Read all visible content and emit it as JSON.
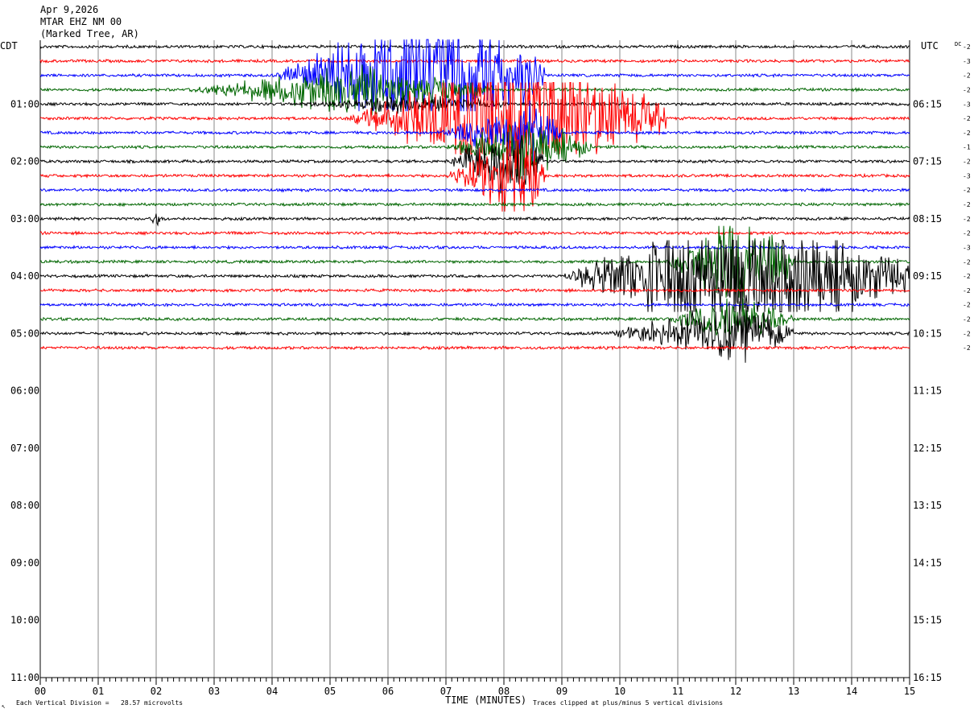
{
  "header": {
    "date": "Apr 9,2026",
    "station": "MTAR EHZ NM 00",
    "location": "(Marked Tree, AR)"
  },
  "left_tz": "CDT",
  "right_tz": "UTC",
  "dc_label": "DC",
  "footer": {
    "scale_note": "Each Vertical Division =   28.57 microvolts",
    "clip_note": "Traces clipped at plus/minus 5 vertical divisions",
    "corner_mark": "↖"
  },
  "colors": {
    "trace_cycle": [
      "#000000",
      "#ff0000",
      "#0000ff",
      "#006600"
    ],
    "grid": "#888888",
    "axis": "#000000"
  },
  "chart_data": {
    "type": "line",
    "title": "",
    "xlabel": "TIME (MINUTES)",
    "ylabel": "",
    "xlim": [
      0,
      15
    ],
    "x_ticks": [
      "00",
      "01",
      "02",
      "03",
      "04",
      "05",
      "06",
      "07",
      "08",
      "09",
      "10",
      "11",
      "12",
      "13",
      "14",
      "15"
    ],
    "hour_labels_left": [
      "01:00",
      "02:00",
      "03:00",
      "04:00",
      "05:00",
      "06:00",
      "07:00",
      "08:00",
      "09:00",
      "10:00",
      "11:00"
    ],
    "hour_labels_right": [
      "06:15",
      "07:15",
      "08:15",
      "09:15",
      "10:15",
      "11:15",
      "12:15",
      "13:15",
      "14:15",
      "15:15",
      "16:15"
    ],
    "row_count": 44,
    "trace_rows": 22,
    "dc_offsets": [
      "-2",
      "-3",
      "-2",
      "-2",
      "-3",
      "-2",
      "-2",
      "-1",
      "-2",
      "-3",
      "-2",
      "-2",
      "-2",
      "-2",
      "-3",
      "-2",
      "-2",
      "-2",
      "-2",
      "-2",
      "-2",
      "-2"
    ],
    "events": [
      {
        "row": 2,
        "start_min": 4.0,
        "peak_min": 7.2,
        "end_min": 8.7,
        "amplitude": 5.0,
        "clipped": true
      },
      {
        "row": 3,
        "start_min": 2.5,
        "peak_min": 5.5,
        "end_min": 7.8,
        "amplitude": 1.6,
        "clipped": false
      },
      {
        "row": 4,
        "start_min": 4.5,
        "peak_min": 6.5,
        "end_min": 8.0,
        "amplitude": 0.6,
        "clipped": false
      },
      {
        "row": 5,
        "start_min": 5.3,
        "peak_min": 8.3,
        "end_min": 10.8,
        "amplitude": 5.0,
        "clipped": true
      },
      {
        "row": 6,
        "start_min": 6.8,
        "peak_min": 8.5,
        "end_min": 9.0,
        "amplitude": 2.0,
        "clipped": false
      },
      {
        "row": 7,
        "start_min": 7.0,
        "peak_min": 8.3,
        "end_min": 9.5,
        "amplitude": 2.0,
        "clipped": false
      },
      {
        "row": 8,
        "start_min": 7.0,
        "peak_min": 8.3,
        "end_min": 8.7,
        "amplitude": 3.0,
        "clipped": false
      },
      {
        "row": 9,
        "start_min": 7.0,
        "peak_min": 8.3,
        "end_min": 8.7,
        "amplitude": 3.5,
        "clipped": false
      },
      {
        "row": 16,
        "start_min": 9.0,
        "peak_min": 12.0,
        "end_min": 15.0,
        "amplitude": 5.0,
        "clipped": true
      },
      {
        "row": 15,
        "start_min": 10.8,
        "peak_min": 12.0,
        "end_min": 13.0,
        "amplitude": 4.0,
        "clipped": false
      },
      {
        "row": 19,
        "start_min": 10.8,
        "peak_min": 12.0,
        "end_min": 13.0,
        "amplitude": 1.5,
        "clipped": false
      },
      {
        "row": 20,
        "start_min": 9.8,
        "peak_min": 12.0,
        "end_min": 13.0,
        "amplitude": 2.0,
        "clipped": false
      },
      {
        "row": 12,
        "start_min": 1.9,
        "peak_min": 2.0,
        "end_min": 2.1,
        "amplitude": 0.6,
        "clipped": false
      }
    ],
    "grid": true,
    "legend": "none"
  }
}
